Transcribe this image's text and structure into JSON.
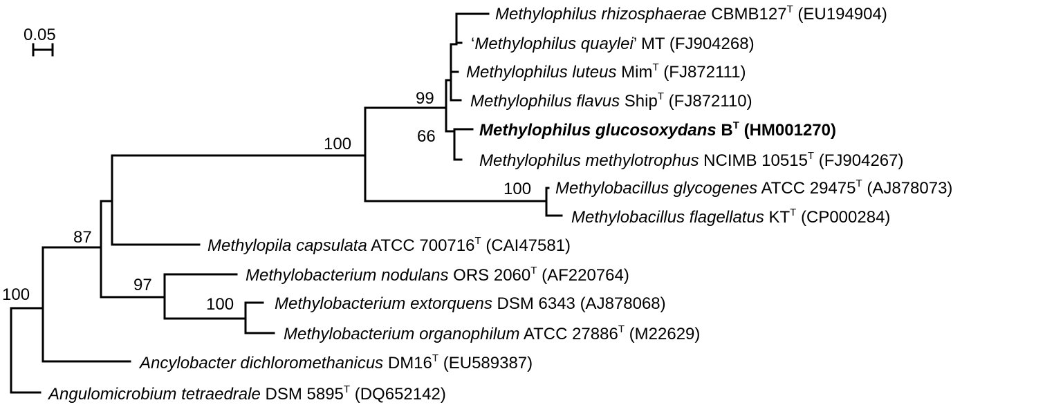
{
  "scale_bar": {
    "label": "0.05"
  },
  "taxa": [
    {
      "id": "m_rhizosphaerae",
      "pre": "",
      "genus": "Methylophilus rhizosphaerae",
      "strain": "CBMB127",
      "sup": "T",
      "acc": "(EU194904)",
      "bold": false
    },
    {
      "id": "m_quaylei",
      "pre": "‘",
      "genus": "Methylophilus quaylei",
      "post": "’",
      "strain": "MT",
      "sup": "",
      "acc": "(FJ904268)",
      "bold": false
    },
    {
      "id": "m_luteus",
      "pre": "",
      "genus": "Methylophilus luteus",
      "strain": "Mim",
      "sup": "T",
      "acc": "(FJ872111)",
      "bold": false
    },
    {
      "id": "m_flavus",
      "pre": "",
      "genus": "Methylophilus flavus",
      "strain": "Ship",
      "sup": "T",
      "acc": "(FJ872110)",
      "bold": false
    },
    {
      "id": "m_glucosoxydans",
      "pre": "",
      "genus": "Methylophilus glucosoxydans",
      "strain": "B",
      "sup": "T",
      "acc": "(HM001270)",
      "bold": true
    },
    {
      "id": "m_methylotrophus",
      "pre": "",
      "genus": "Methylophilus methylotrophus",
      "strain": "NCIMB 10515",
      "sup": "T",
      "acc": "(FJ904267)",
      "bold": false
    },
    {
      "id": "mb_glycogenes",
      "pre": "",
      "genus": "Methylobacillus glycogenes",
      "strain": "ATCC 29475",
      "sup": "T",
      "acc": "(AJ878073)",
      "bold": false
    },
    {
      "id": "mb_flagellatus",
      "pre": "",
      "genus": "Methylobacillus flagellatus",
      "strain": "KT",
      "sup": "T",
      "acc": "(CP000284)",
      "bold": false
    },
    {
      "id": "mp_capsulata",
      "pre": "",
      "genus": "Methylopila capsulata",
      "strain": "ATCC 700716",
      "sup": "T",
      "acc": "(CAI47581)",
      "bold": false
    },
    {
      "id": "mbt_nodulans",
      "pre": "",
      "genus": "Methylobacterium nodulans",
      "strain": "ORS 2060",
      "sup": "T",
      "acc": "(AF220764)",
      "bold": false
    },
    {
      "id": "mbt_extorquens",
      "pre": "",
      "genus": "Methylobacterium extorquens",
      "strain": "DSM 6343",
      "sup": "",
      "acc": "(AJ878068)",
      "bold": false
    },
    {
      "id": "mbt_organophilum",
      "pre": "",
      "genus": "Methylobacterium organophilum",
      "strain": "ATCC 27886",
      "sup": "T",
      "acc": "(M22629)",
      "bold": false
    },
    {
      "id": "a_dichloromethanicus",
      "pre": "",
      "genus": "Ancylobacter dichloromethanicus",
      "strain": "DM16",
      "sup": "T",
      "acc": "(EU589387)",
      "bold": false
    },
    {
      "id": "a_tetraedrale",
      "pre": "",
      "genus": "Angulomicrobium tetraedrale",
      "strain": "DSM 5895",
      "sup": "T",
      "acc": "(DQ652142)",
      "bold": false
    }
  ],
  "bootstrap": {
    "n99": "99",
    "n66": "66",
    "n100_methylophilaceae": "100",
    "n100_methylobacillus": "100",
    "n87": "87",
    "n97": "97",
    "n100_methylobacterium": "100",
    "n100_root": "100"
  }
}
